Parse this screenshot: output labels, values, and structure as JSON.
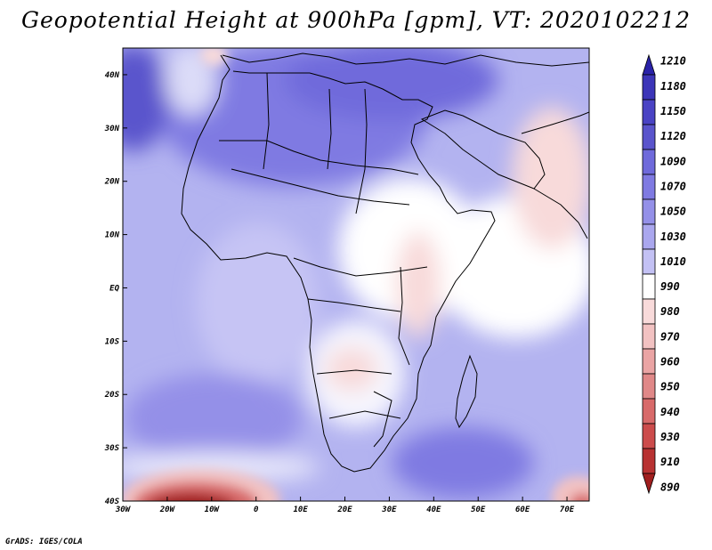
{
  "title": "Geopotential Height at 900hPa [gpm], VT: 2020102212",
  "credit": "GrADS: IGES/COLA",
  "map": {
    "extent": {
      "lon": [
        -30,
        75
      ],
      "lat": [
        -40,
        45
      ]
    },
    "lat_ticks": [
      "40N",
      "30N",
      "20N",
      "10N",
      "EQ",
      "10S",
      "20S",
      "30S",
      "40S"
    ],
    "lon_ticks": [
      "30W",
      "20W",
      "10W",
      "0",
      "10E",
      "20E",
      "30E",
      "40E",
      "50E",
      "60E",
      "70E"
    ],
    "base_color": "#b3b3f0"
  },
  "colorbar": {
    "levels": [
      "1210",
      "1180",
      "1150",
      "1120",
      "1090",
      "1070",
      "1050",
      "1030",
      "1010",
      "990",
      "980",
      "970",
      "960",
      "950",
      "940",
      "930",
      "910",
      "890"
    ],
    "colors": [
      "#2a22a8",
      "#3c35b8",
      "#4a43c4",
      "#5a54cc",
      "#6f6adb",
      "#7f7ae2",
      "#9490e8",
      "#aaa7ee",
      "#c3c1f4",
      "#ffffff",
      "#f8dada",
      "#f2c2c2",
      "#eaa4a4",
      "#e08888",
      "#d86a6a",
      "#cc4c4c",
      "#b83232",
      "#a01e1e"
    ]
  }
}
